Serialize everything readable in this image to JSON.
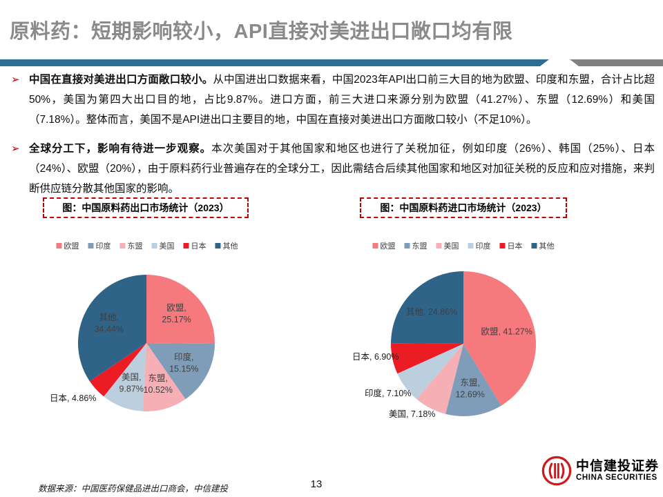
{
  "header": {
    "title": "原料药：短期影响较小，API直接对美进出口敞口均有限",
    "title_color": "#8A8A8A",
    "bar_blue": "#2E6E96",
    "bar_gray": "#808080"
  },
  "bullets": [
    {
      "lead": "中国在直接对美进出口方面敞口较小。",
      "text": "从中国进出口数据来看，中国2023年API出口前三大目的地为欧盟、印度和东盟，合计占比超50%，美国为第四大出口目的地，占比9.87%。进口方面，前三大进口来源分别为欧盟（41.27%）、东盟（12.69%）和美国（7.18%）。整体而言，美国不是API进出口主要目的地，中国在直接对美进出口方面敞口较小（不足10%）。"
    },
    {
      "lead": "全球分工下，影响有待进一步观察。",
      "text": "本次美国对于其他国家和地区也进行了关税加征，例如印度（26%）、韩国（25%）、日本（24%）、欧盟（20%），由于原料药行业普遍存在的全球分工，因此需结合后续其他国家和地区对加征关税的反应和应对措施，来判断供应链分散其他国家的影响。"
    }
  ],
  "chart_data": [
    {
      "type": "pie",
      "title": "图：中国原料药出口市场统计（2023）",
      "legend_position": "top",
      "start_angle_deg": 0,
      "direction": "clockwise",
      "slices": [
        {
          "name": "欧盟",
          "value": 25.17,
          "pct": "25.17%",
          "color": "#F5797D",
          "placement": "inside",
          "stacked": true
        },
        {
          "name": "印度",
          "value": 15.15,
          "pct": "15.15%",
          "color": "#7F9DB9",
          "placement": "inside",
          "stacked": true
        },
        {
          "name": "东盟",
          "value": 10.52,
          "pct": "10.52%",
          "color": "#F5AFB5",
          "placement": "inside",
          "stacked": true
        },
        {
          "name": "美国",
          "value": 9.87,
          "pct": "9.87%",
          "color": "#BCCFDF",
          "placement": "inside",
          "stacked": true
        },
        {
          "name": "日本",
          "value": 4.86,
          "pct": "4.86%",
          "color": "#EC1C24",
          "placement": "outside",
          "label_xy": [
            22,
            205
          ]
        },
        {
          "name": "其他",
          "value": 34.44,
          "pct": "34.44%",
          "color": "#2F6388",
          "placement": "inside",
          "stacked": true
        }
      ]
    },
    {
      "type": "pie",
      "title": "图：中国原料药进口市场统计（2023）",
      "legend_position": "top",
      "start_angle_deg": 0,
      "direction": "clockwise",
      "slices": [
        {
          "name": "欧盟",
          "value": 41.27,
          "pct": "41.27%",
          "color": "#F5797D",
          "placement": "inside",
          "stacked": false
        },
        {
          "name": "东盟",
          "value": 12.69,
          "pct": "12.69%",
          "color": "#7F9DB9",
          "placement": "inside",
          "stacked": true
        },
        {
          "name": "美国",
          "value": 7.18,
          "pct": "7.18%",
          "color": "#F5AFB5",
          "placement": "outside",
          "label_xy": [
            83,
            228
          ]
        },
        {
          "name": "印度",
          "value": 7.1,
          "pct": "7.10%",
          "color": "#BCCFDF",
          "placement": "outside",
          "label_xy": [
            48,
            198
          ]
        },
        {
          "name": "日本",
          "value": 6.9,
          "pct": "6.90%",
          "color": "#EC1C24",
          "placement": "outside",
          "label_xy": [
            30,
            145
          ]
        },
        {
          "name": "其他",
          "value": 24.86,
          "pct": "24.86%",
          "color": "#2F6388",
          "placement": "inside",
          "stacked": false
        }
      ]
    }
  ],
  "footer": {
    "source": "数据来源：中国医药保健品进出口商会，中信建投",
    "page_number": "13",
    "logo_cn": "中信建投证券",
    "logo_en": "CHINA SECURITIES",
    "logo_red": "#CC1B1E"
  }
}
